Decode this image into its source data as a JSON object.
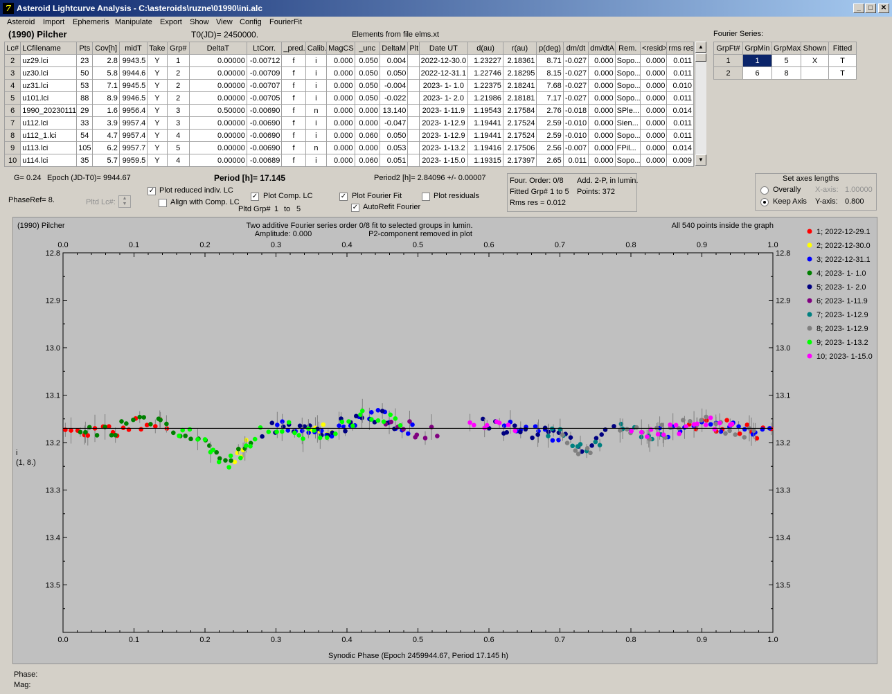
{
  "window": {
    "title": "Asteroid Lightcurve Analysis - C:\\asteroids\\ruzne\\01990\\ini.alc"
  },
  "menu": [
    "Asteroid",
    "Import",
    "Ephemeris",
    "Manipulate",
    "Export",
    "Show",
    "View",
    "Config",
    "FourierFit"
  ],
  "header": {
    "asteroid": "(1990) Pilcher",
    "t0": "T0(JD)= 2450000.",
    "elements": "Elements from file elms.xt",
    "fourier_series": "Fourier Series:"
  },
  "table": {
    "columns": [
      "Lc#",
      "LCfilename",
      "Pts",
      "Cov[h]",
      "midT",
      "Take",
      "Grp#",
      "DeltaT",
      "LtCorr.",
      "_pred.",
      "Calib.",
      "MagCS",
      "_unc",
      "DeltaM",
      "Plt",
      "Date UT",
      "d(au)",
      "r(au)",
      "p(deg)",
      "dm/dt",
      "dm/dtA",
      "Rem.",
      "<resid>",
      "rms res"
    ],
    "rows": [
      [
        "2",
        "uz29.lci",
        "23",
        "2.8",
        "9943.5",
        "Y",
        "1",
        "0.00000",
        "-0.00712",
        "f",
        "i",
        "0.000",
        "0.050",
        "0.004",
        "",
        "2022-12-30.0",
        "1.23227",
        "2.18361",
        "8.71",
        "-0.027",
        "0.000",
        "Sopo...",
        "0.000",
        "0.011"
      ],
      [
        "3",
        "uz30.lci",
        "50",
        "5.8",
        "9944.6",
        "Y",
        "2",
        "0.00000",
        "-0.00709",
        "f",
        "i",
        "0.000",
        "0.050",
        "0.050",
        "",
        "2022-12-31.1",
        "1.22746",
        "2.18295",
        "8.15",
        "-0.027",
        "0.000",
        "Sopo...",
        "0.000",
        "0.011"
      ],
      [
        "4",
        "uz31.lci",
        "53",
        "7.1",
        "9945.5",
        "Y",
        "2",
        "0.00000",
        "-0.00707",
        "f",
        "i",
        "0.000",
        "0.050",
        "-0.004",
        "",
        "2023- 1- 1.0",
        "1.22375",
        "2.18241",
        "7.68",
        "-0.027",
        "0.000",
        "Sopo...",
        "0.000",
        "0.010"
      ],
      [
        "5",
        "u101.lci",
        "88",
        "8.9",
        "9946.5",
        "Y",
        "2",
        "0.00000",
        "-0.00705",
        "f",
        "i",
        "0.000",
        "0.050",
        "-0.022",
        "",
        "2023- 1- 2.0",
        "1.21986",
        "2.18181",
        "7.17",
        "-0.027",
        "0.000",
        "Sopo...",
        "0.000",
        "0.011"
      ],
      [
        "6",
        "1990_20230111",
        "29",
        "1.6",
        "9956.4",
        "Y",
        "3",
        "0.50000",
        "-0.00690",
        "f",
        "n",
        "0.000",
        "0.000",
        "13.140",
        "",
        "2023- 1-11.9",
        "1.19543",
        "2.17584",
        "2.76",
        "-0.018",
        "0.000",
        "SPle...",
        "0.000",
        "0.014"
      ],
      [
        "7",
        "u112.lci",
        "33",
        "3.9",
        "9957.4",
        "Y",
        "3",
        "0.00000",
        "-0.00690",
        "f",
        "i",
        "0.000",
        "0.000",
        "-0.047",
        "",
        "2023- 1-12.9",
        "1.19441",
        "2.17524",
        "2.59",
        "-0.010",
        "0.000",
        "Sien...",
        "0.000",
        "0.011"
      ],
      [
        "8",
        "u112_1.lci",
        "54",
        "4.7",
        "9957.4",
        "Y",
        "4",
        "0.00000",
        "-0.00690",
        "f",
        "i",
        "0.000",
        "0.060",
        "0.050",
        "",
        "2023- 1-12.9",
        "1.19441",
        "2.17524",
        "2.59",
        "-0.010",
        "0.000",
        "Sopo...",
        "0.000",
        "0.011"
      ],
      [
        "9",
        "u113.lci",
        "105",
        "6.2",
        "9957.7",
        "Y",
        "5",
        "0.00000",
        "-0.00690",
        "f",
        "n",
        "0.000",
        "0.000",
        "0.053",
        "",
        "2023- 1-13.2",
        "1.19416",
        "2.17506",
        "2.56",
        "-0.007",
        "0.000",
        "FPil...",
        "0.000",
        "0.014"
      ],
      [
        "10",
        "u114.lci",
        "35",
        "5.7",
        "9959.5",
        "Y",
        "4",
        "0.00000",
        "-0.00689",
        "f",
        "i",
        "0.000",
        "0.060",
        "0.051",
        "",
        "2023- 1-15.0",
        "1.19315",
        "2.17397",
        "2.65",
        "0.011",
        "0.000",
        "Sopo...",
        "0.000",
        "0.009"
      ]
    ]
  },
  "fourier_table": {
    "columns": [
      "GrpFt#",
      "GrpMin",
      "GrpMax",
      "Shown",
      "Fitted"
    ],
    "rows": [
      [
        "1",
        "1",
        "5",
        "X",
        "T"
      ],
      [
        "2",
        "6",
        "8",
        "",
        "T"
      ]
    ]
  },
  "info": {
    "g": "G= 0.24",
    "epoch": "Epoch (JD-T0)= 9944.67",
    "period": "Period [h]= 17.145",
    "period2": "Period2 [h]= 2.84096 +/- 0.00007",
    "phase_ref": "PhaseRef= 8.",
    "pltd_lc": "Pltd Lc#:",
    "pltd_grp_label": "Pltd Grp#",
    "pltd_grp_from": "1",
    "pltd_grp_to_label": "to",
    "pltd_grp_to": "5",
    "four_order": "Four. Order:  0/8",
    "add": "Add. 2-P, in lumin.",
    "fitted_grp": "Fitted Grp# 1 to 5",
    "points": "Points: 372",
    "rms": "Rms res     = 0.012"
  },
  "checkboxes": [
    {
      "label": "Plot reduced indiv. LC",
      "checked": true
    },
    {
      "label": "Align with Comp. LC",
      "checked": false
    },
    {
      "label": "Plot Comp. LC",
      "checked": true
    },
    {
      "label": "Plot Fourier Fit",
      "checked": true
    },
    {
      "label": "Plot residuals",
      "checked": false
    },
    {
      "label": "AutoRefit Fourier",
      "checked": true
    }
  ],
  "axes_panel": {
    "title": "Set axes lengths",
    "overally": "Overally",
    "keep_axis": "Keep Axis",
    "x_axis_label": "X-axis:",
    "x_axis_value": "1.00000",
    "y_axis_label": "Y-axis:",
    "y_axis_value": "0.800"
  },
  "status": {
    "phase": "Phase:",
    "mag": "Mag:"
  },
  "chart_data": {
    "type": "scatter",
    "title": "Two additive Fourier series order 0/8 fit to selected groups in lumin.",
    "subtitle": "Amplitude: 0.000",
    "note_left": "(1990) Pilcher",
    "note_right": "All 540 points inside the graph",
    "note_p2": "P2-component removed in plot",
    "xlabel": "Synodic Phase (Epoch 2459944.67, Period 17.145 h)",
    "ylabel_1": "i",
    "ylabel_2": "(1, 8.)",
    "xlim": [
      0,
      1
    ],
    "ylim": [
      12.8,
      13.6
    ],
    "x_ticks": [
      "0.0",
      "0.1",
      "0.2",
      "0.3",
      "0.4",
      "0.5",
      "0.6",
      "0.7",
      "0.8",
      "0.9",
      "1.0"
    ],
    "y_ticks": [
      "12.8",
      "12.9",
      "13.0",
      "13.1",
      "13.2",
      "13.3",
      "13.4",
      "13.5"
    ],
    "fit_line_y": 13.17,
    "legend": [
      {
        "name": "1; 2022-12-29.1",
        "color": "#ff0000"
      },
      {
        "name": "2; 2022-12-30.0",
        "color": "#ffff00"
      },
      {
        "name": "3; 2022-12-31.1",
        "color": "#0000ff"
      },
      {
        "name": "4; 2023- 1- 1.0",
        "color": "#008000"
      },
      {
        "name": "5; 2023- 1- 2.0",
        "color": "#000080"
      },
      {
        "name": "6; 2023- 1-11.9",
        "color": "#800080"
      },
      {
        "name": "7; 2023- 1-12.9",
        "color": "#008080"
      },
      {
        "name": "8; 2023- 1-12.9",
        "color": "#808080"
      },
      {
        "name": "9; 2023- 1-13.2",
        "color": "#00ff00"
      },
      {
        "name": "10; 2023- 1-15.0",
        "color": "#ff00ff"
      }
    ],
    "series": [
      {
        "name": "1; 2022-12-29.1",
        "ranges": [
          [
            0.0,
            0.15
          ],
          [
            0.88,
            1.0
          ]
        ]
      },
      {
        "name": "2; 2022-12-30.0",
        "ranges": [
          [
            0.24,
            0.26
          ],
          [
            0.35,
            0.38
          ]
        ]
      },
      {
        "name": "3; 2022-12-31.1",
        "ranges": [
          [
            0.3,
            0.5
          ],
          [
            0.62,
            0.7
          ],
          [
            0.84,
            1.0
          ]
        ]
      },
      {
        "name": "4; 2023- 1- 1.0",
        "ranges": [
          [
            0.02,
            0.27
          ]
        ]
      },
      {
        "name": "5; 2023- 1- 2.0",
        "ranges": [
          [
            0.28,
            0.47
          ],
          [
            0.59,
            0.78
          ]
        ]
      },
      {
        "name": "6; 2023- 1-11.9",
        "ranges": [
          [
            0.45,
            0.53
          ]
        ]
      },
      {
        "name": "7; 2023- 1-12.9",
        "ranges": [
          [
            0.68,
            0.76
          ],
          [
            0.78,
            0.86
          ]
        ]
      },
      {
        "name": "8; 2023- 1-12.9",
        "ranges": [
          [
            0.7,
            0.75
          ],
          [
            0.78,
            0.98
          ]
        ]
      },
      {
        "name": "9; 2023- 1-13.2",
        "ranges": [
          [
            0.16,
            0.48
          ]
        ]
      },
      {
        "name": "10; 2023- 1-15.0",
        "ranges": [
          [
            0.57,
            0.64
          ],
          [
            0.8,
            0.95
          ]
        ]
      }
    ]
  }
}
